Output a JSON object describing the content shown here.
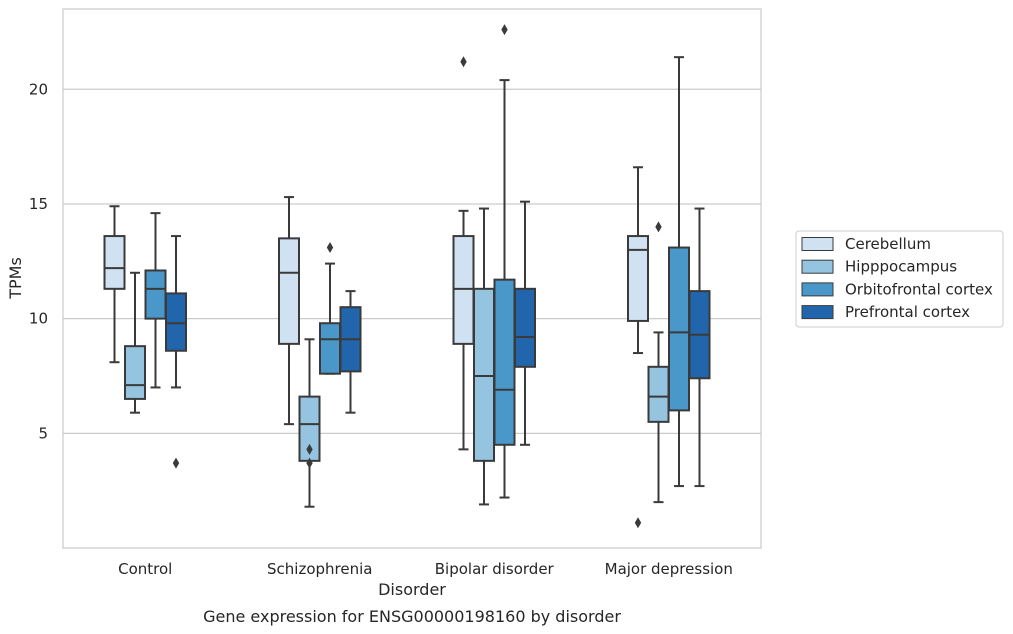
{
  "chart_data": {
    "type": "box",
    "title": "",
    "caption": "Gene expression for ENSG00000198160 by disorder",
    "xlabel": "Disorder",
    "ylabel": "TPMs",
    "ylim": [
      0,
      23.5
    ],
    "yticks": [
      5,
      10,
      15,
      20
    ],
    "grid": "horizontal",
    "legend_position": "right",
    "categories": [
      "Control",
      "Schizophrenia",
      "Bipolar disorder",
      "Major depression"
    ],
    "series": [
      {
        "name": "Cerebellum",
        "color": "#d0e1f2",
        "boxes": [
          {
            "whisker_low": 8.1,
            "q1": 11.3,
            "median": 12.2,
            "q3": 13.6,
            "whisker_high": 14.9,
            "outliers": []
          },
          {
            "whisker_low": 5.4,
            "q1": 8.9,
            "median": 12.0,
            "q3": 13.5,
            "whisker_high": 15.3,
            "outliers": []
          },
          {
            "whisker_low": 4.3,
            "q1": 8.9,
            "median": 11.3,
            "q3": 13.6,
            "whisker_high": 14.7,
            "outliers": [
              21.2
            ]
          },
          {
            "whisker_low": 8.5,
            "q1": 9.9,
            "median": 13.0,
            "q3": 13.6,
            "whisker_high": 16.6,
            "outliers": [
              1.1
            ]
          }
        ]
      },
      {
        "name": "Hipppocampus",
        "color": "#94c4df",
        "boxes": [
          {
            "whisker_low": 5.9,
            "q1": 6.5,
            "median": 7.1,
            "q3": 8.8,
            "whisker_high": 12.0,
            "outliers": []
          },
          {
            "whisker_low": 1.8,
            "q1": 3.8,
            "median": 5.4,
            "q3": 6.6,
            "whisker_high": 9.1,
            "outliers": [
              4.3,
              3.7
            ]
          },
          {
            "whisker_low": 1.9,
            "q1": 3.8,
            "median": 7.5,
            "q3": 11.3,
            "whisker_high": 14.8,
            "outliers": []
          },
          {
            "whisker_low": 2.0,
            "q1": 5.5,
            "median": 6.6,
            "q3": 7.9,
            "whisker_high": 9.4,
            "outliers": [
              14.0
            ]
          }
        ]
      },
      {
        "name": "Orbitofrontal cortex",
        "color": "#4a98c9",
        "boxes": [
          {
            "whisker_low": 7.0,
            "q1": 10.0,
            "median": 11.3,
            "q3": 12.1,
            "whisker_high": 14.6,
            "outliers": []
          },
          {
            "whisker_low": 7.6,
            "q1": 7.6,
            "median": 9.1,
            "q3": 9.8,
            "whisker_high": 12.4,
            "outliers": [
              13.1
            ]
          },
          {
            "whisker_low": 2.2,
            "q1": 4.5,
            "median": 6.9,
            "q3": 11.7,
            "whisker_high": 20.4,
            "outliers": [
              22.6
            ]
          },
          {
            "whisker_low": 2.7,
            "q1": 6.0,
            "median": 9.4,
            "q3": 13.1,
            "whisker_high": 21.4,
            "outliers": []
          }
        ]
      },
      {
        "name": "Prefrontal cortex",
        "color": "#2166ac",
        "boxes": [
          {
            "whisker_low": 7.0,
            "q1": 8.6,
            "median": 9.8,
            "q3": 11.1,
            "whisker_high": 13.6,
            "outliers": [
              3.7
            ]
          },
          {
            "whisker_low": 5.9,
            "q1": 7.7,
            "median": 9.1,
            "q3": 10.5,
            "whisker_high": 11.2,
            "outliers": []
          },
          {
            "whisker_low": 4.5,
            "q1": 7.9,
            "median": 9.2,
            "q3": 11.3,
            "whisker_high": 15.1,
            "outliers": []
          },
          {
            "whisker_low": 2.7,
            "q1": 7.4,
            "median": 9.3,
            "q3": 11.2,
            "whisker_high": 14.8,
            "outliers": []
          }
        ]
      }
    ]
  }
}
